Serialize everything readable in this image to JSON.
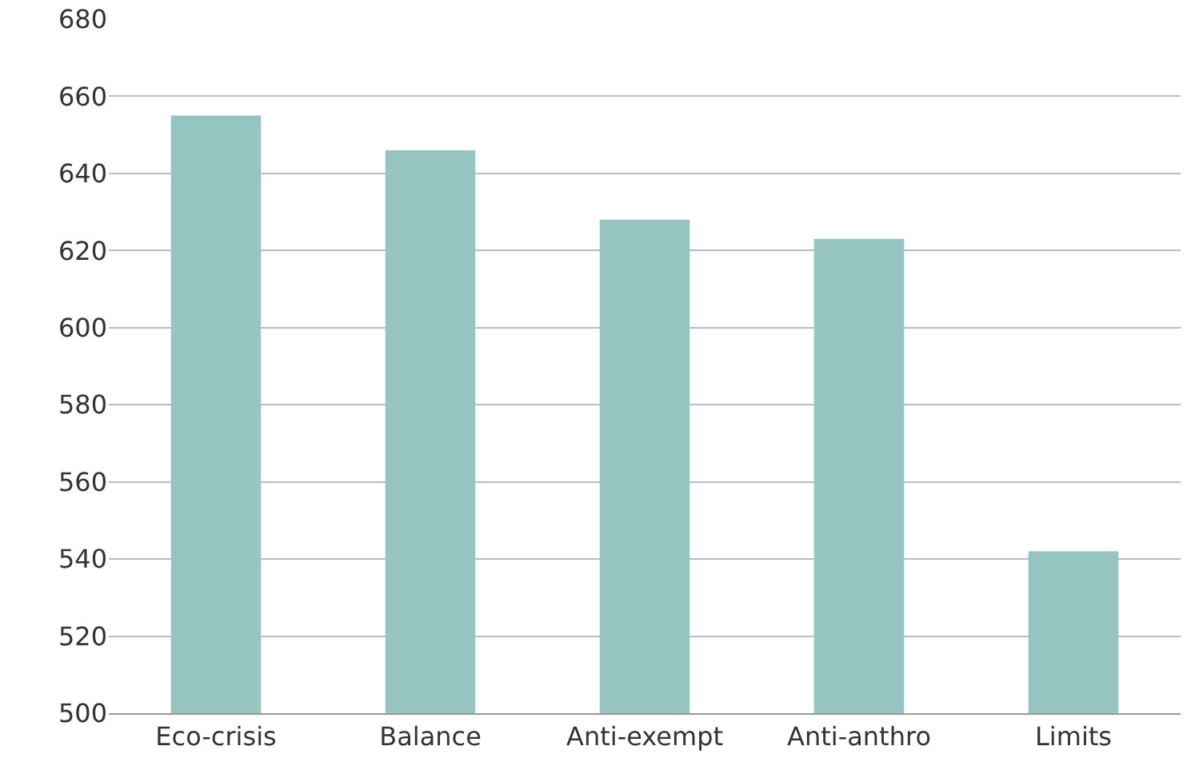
{
  "chart_data": {
    "type": "bar",
    "categories": [
      "Eco-crisis",
      "Balance",
      "Anti-exempt",
      "Anti-anthro",
      "Limits"
    ],
    "values": [
      655,
      646,
      628,
      623,
      542
    ],
    "color": "#95c4c1",
    "ylim": [
      500,
      680
    ],
    "yticks": [
      500,
      520,
      540,
      560,
      580,
      600,
      620,
      640,
      660,
      680
    ],
    "grid": "y",
    "legend": false
  }
}
